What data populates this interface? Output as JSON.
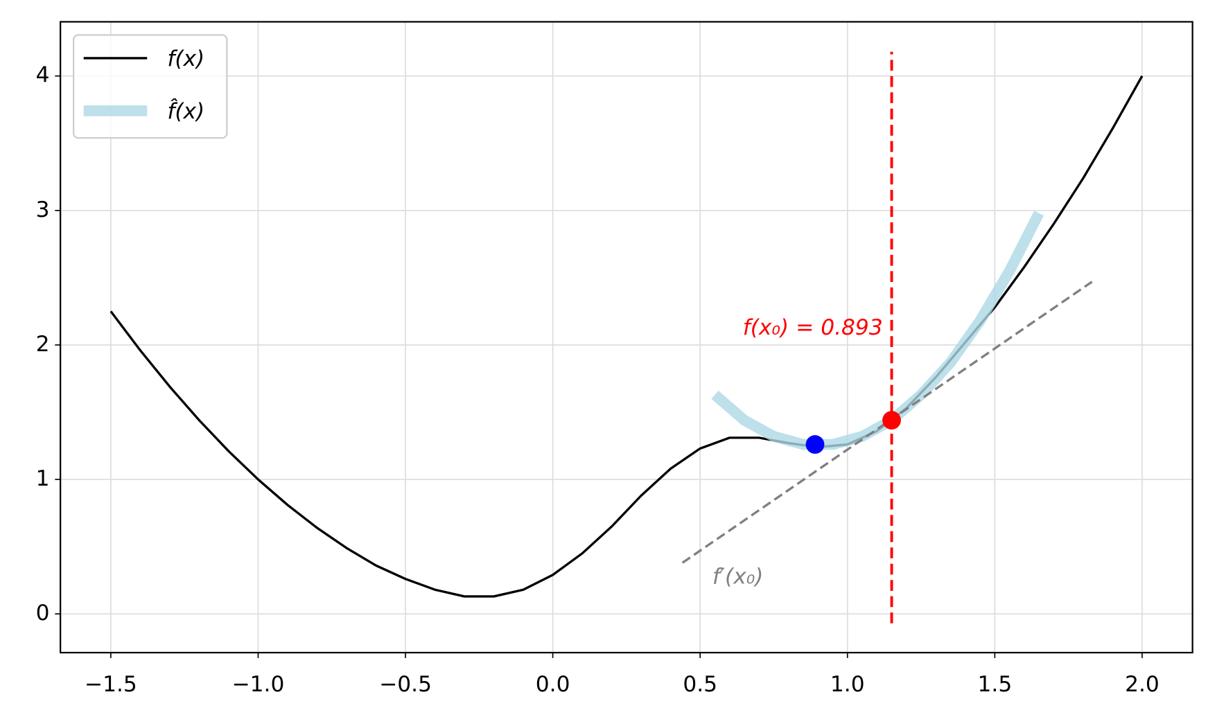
{
  "chart_data": {
    "type": "line",
    "xlim": [
      -1.671,
      2.171
    ],
    "ylim": [
      -0.288,
      4.403
    ],
    "xticks": [
      {
        "value": -1.5,
        "label": "−1.5"
      },
      {
        "value": -1.0,
        "label": "−1.0"
      },
      {
        "value": -0.5,
        "label": "−0.5"
      },
      {
        "value": 0,
        "label": "0.0"
      },
      0.5,
      {
        "value": 1,
        "label": "1.0"
      },
      1.5,
      {
        "value": 2,
        "label": "2.0"
      }
    ],
    "yticks": [
      0,
      1,
      2,
      3,
      4
    ],
    "grid": true,
    "legend": "upper left",
    "series": [
      {
        "name": "f(x)",
        "color": "#000000",
        "x": [
          -1.5,
          -1.4,
          -1.3,
          -1.2,
          -1.1,
          -1.0,
          -0.9,
          -0.8,
          -0.7,
          -0.6,
          -0.5,
          -0.4,
          -0.3,
          -0.2,
          -0.1,
          0.0,
          0.1,
          0.2,
          0.3,
          0.4,
          0.5,
          0.6,
          0.7,
          0.8,
          0.9,
          1.0,
          1.1,
          1.2,
          1.3,
          1.4,
          1.5,
          1.6,
          1.7,
          1.8,
          1.9,
          2.0
        ],
        "values": [
          2.25,
          1.96,
          1.69,
          1.44,
          1.21,
          1.0,
          0.81,
          0.64,
          0.49,
          0.36,
          0.26,
          0.18,
          0.13,
          0.13,
          0.18,
          0.29,
          0.45,
          0.65,
          0.88,
          1.08,
          1.23,
          1.31,
          1.31,
          1.27,
          1.24,
          1.26,
          1.36,
          1.53,
          1.76,
          2.02,
          2.28,
          2.58,
          2.9,
          3.24,
          3.61,
          4.0
        ]
      },
      {
        "name": "f̂(x)",
        "color": "#add8e6",
        "x": [
          0.55,
          0.65,
          0.75,
          0.85,
          0.95,
          1.05,
          1.15,
          1.25,
          1.35,
          1.45,
          1.55,
          1.65
        ],
        "values": [
          1.63,
          1.44,
          1.32,
          1.26,
          1.26,
          1.32,
          1.44,
          1.63,
          1.87,
          2.18,
          2.55,
          2.98
        ]
      }
    ],
    "reference_lines": [
      {
        "color": "#808080",
        "x": [
          0.44,
          1.83
        ],
        "values": [
          0.38,
          2.47
        ]
      },
      {
        "color": "#ff0000",
        "x": [
          1.15,
          1.15
        ],
        "values": [
          -0.07,
          4.18
        ]
      }
    ],
    "points": [
      {
        "color": "#0000ff",
        "x": 0.89,
        "y": 1.26
      },
      {
        "color": "#ff0000",
        "x": 1.15,
        "y": 1.44
      }
    ],
    "annotations": [
      {
        "text": "f(x₀) = 0.893",
        "color": "#ff0000"
      },
      {
        "text": "f′(x₀)",
        "color": "#808080"
      }
    ]
  }
}
